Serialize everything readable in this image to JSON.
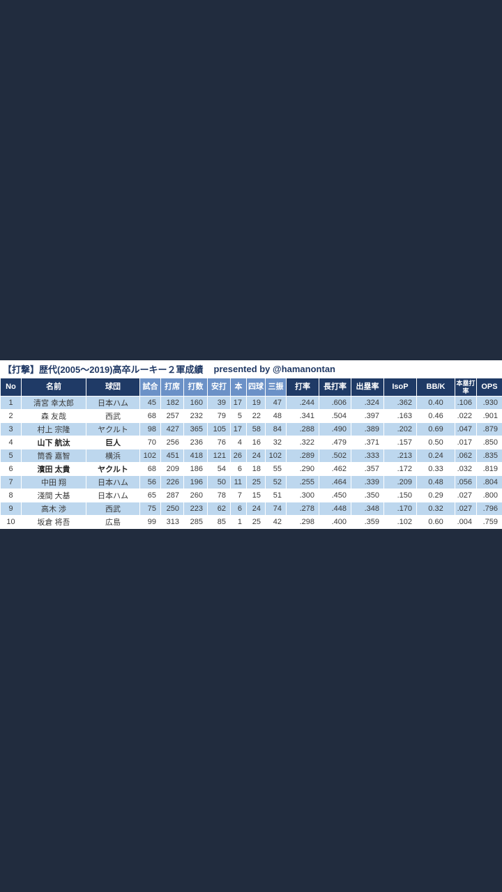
{
  "colors": {
    "background": "#212c3e",
    "header_dark": "#1f3a66",
    "header_light": "#6b91c7",
    "row_stripe": "#bdd7ee",
    "row_plain": "#ffffff",
    "title_text": "#1f3864",
    "body_text": "#3a3a3a"
  },
  "chart_data": {
    "type": "table",
    "title": "【打撃】歴代(2005～2019)高卒ルーキー２軍成績",
    "credit": "presented by @hamanontan",
    "legend_note": "rows with bold name/team: 山下 航汰 (巨人), 濱田 太貴 (ヤクルト)",
    "columns": [
      {
        "label": "No",
        "shade": "dark",
        "align": "center"
      },
      {
        "label": "名前",
        "shade": "dark",
        "align": "center"
      },
      {
        "label": "球団",
        "shade": "dark",
        "align": "center"
      },
      {
        "label": "試合",
        "shade": "light",
        "align": "right"
      },
      {
        "label": "打席",
        "shade": "light",
        "align": "right"
      },
      {
        "label": "打数",
        "shade": "light",
        "align": "right"
      },
      {
        "label": "安打",
        "shade": "light",
        "align": "right"
      },
      {
        "label": "本",
        "shade": "light",
        "align": "right"
      },
      {
        "label": "四球",
        "shade": "light",
        "align": "right"
      },
      {
        "label": "三振",
        "shade": "light",
        "align": "right"
      },
      {
        "label": "打率",
        "shade": "dark",
        "align": "right"
      },
      {
        "label": "長打率",
        "shade": "dark",
        "align": "right"
      },
      {
        "label": "出塁率",
        "shade": "dark",
        "align": "right"
      },
      {
        "label": "IsoP",
        "shade": "dark",
        "align": "right"
      },
      {
        "label": "BB/K",
        "shade": "dark",
        "align": "center"
      },
      {
        "label": "本塁打率",
        "shade": "dark",
        "align": "right"
      },
      {
        "label": "OPS",
        "shade": "dark",
        "align": "right"
      }
    ],
    "rows": [
      {
        "bold": false,
        "cells": [
          "1",
          "清宮 幸太郎",
          "日本ハム",
          "45",
          "182",
          "160",
          "39",
          "17",
          "19",
          "47",
          ".244",
          ".606",
          ".324",
          ".362",
          "0.40",
          ".106",
          ".930"
        ]
      },
      {
        "bold": false,
        "cells": [
          "2",
          "森 友哉",
          "西武",
          "68",
          "257",
          "232",
          "79",
          "5",
          "22",
          "48",
          ".341",
          ".504",
          ".397",
          ".163",
          "0.46",
          ".022",
          ".901"
        ]
      },
      {
        "bold": false,
        "cells": [
          "3",
          "村上 宗隆",
          "ヤクルト",
          "98",
          "427",
          "365",
          "105",
          "17",
          "58",
          "84",
          ".288",
          ".490",
          ".389",
          ".202",
          "0.69",
          ".047",
          ".879"
        ]
      },
      {
        "bold": true,
        "cells": [
          "4",
          "山下 航汰",
          "巨人",
          "70",
          "256",
          "236",
          "76",
          "4",
          "16",
          "32",
          ".322",
          ".479",
          ".371",
          ".157",
          "0.50",
          ".017",
          ".850"
        ]
      },
      {
        "bold": false,
        "cells": [
          "5",
          "筒香 嘉智",
          "横浜",
          "102",
          "451",
          "418",
          "121",
          "26",
          "24",
          "102",
          ".289",
          ".502",
          ".333",
          ".213",
          "0.24",
          ".062",
          ".835"
        ]
      },
      {
        "bold": true,
        "cells": [
          "6",
          "濱田 太貴",
          "ヤクルト",
          "68",
          "209",
          "186",
          "54",
          "6",
          "18",
          "55",
          ".290",
          ".462",
          ".357",
          ".172",
          "0.33",
          ".032",
          ".819"
        ]
      },
      {
        "bold": false,
        "cells": [
          "7",
          "中田 翔",
          "日本ハム",
          "56",
          "226",
          "196",
          "50",
          "11",
          "25",
          "52",
          ".255",
          ".464",
          ".339",
          ".209",
          "0.48",
          ".056",
          ".804"
        ]
      },
      {
        "bold": false,
        "cells": [
          "8",
          "淺間 大基",
          "日本ハム",
          "65",
          "287",
          "260",
          "78",
          "7",
          "15",
          "51",
          ".300",
          ".450",
          ".350",
          ".150",
          "0.29",
          ".027",
          ".800"
        ]
      },
      {
        "bold": false,
        "cells": [
          "9",
          "高木 渉",
          "西武",
          "75",
          "250",
          "223",
          "62",
          "6",
          "24",
          "74",
          ".278",
          ".448",
          ".348",
          ".170",
          "0.32",
          ".027",
          ".796"
        ]
      },
      {
        "bold": false,
        "cells": [
          "10",
          "坂倉 将吾",
          "広島",
          "99",
          "313",
          "285",
          "85",
          "1",
          "25",
          "42",
          ".298",
          ".400",
          ".359",
          ".102",
          "0.60",
          ".004",
          ".759"
        ]
      }
    ]
  }
}
